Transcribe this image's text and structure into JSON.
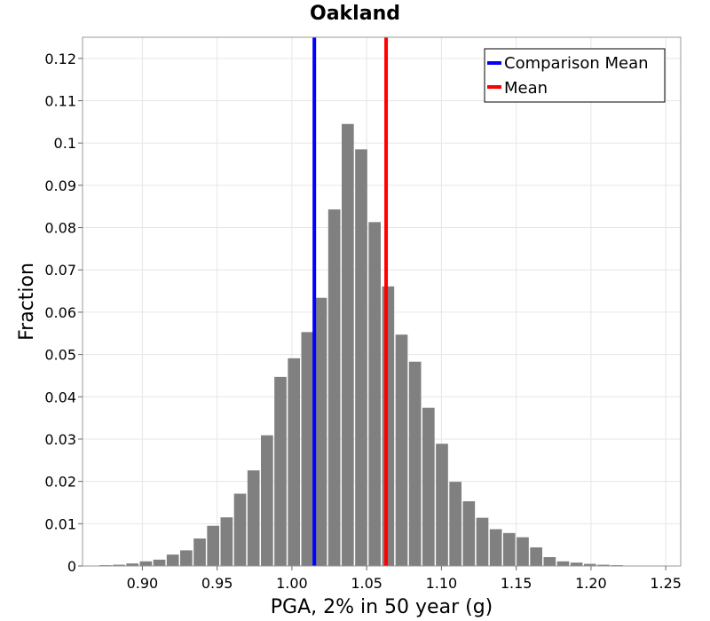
{
  "chart_data": {
    "type": "bar",
    "title": "Oakland",
    "xlabel": "PGA, 2% in 50 year (g)",
    "ylabel": "Fraction",
    "xlim": [
      0.86,
      1.26
    ],
    "ylim": [
      0,
      0.125
    ],
    "x_ticks": [
      0.9,
      0.95,
      1.0,
      1.05,
      1.1,
      1.15,
      1.2,
      1.25
    ],
    "x_tick_labels": [
      "0.90",
      "0.95",
      "1.00",
      "1.05",
      "1.10",
      "1.15",
      "1.20",
      "1.25"
    ],
    "y_ticks": [
      0,
      0.01,
      0.02,
      0.03,
      0.04,
      0.05,
      0.06,
      0.07,
      0.08,
      0.09,
      0.1,
      0.11,
      0.12
    ],
    "y_tick_labels": [
      "0",
      "0.01",
      "0.02",
      "0.03",
      "0.04",
      "0.05",
      "0.06",
      "0.07",
      "0.08",
      "0.09",
      "0.1",
      "0.11",
      "0.12"
    ],
    "grid": true,
    "legend_position": "top-right",
    "bin_width": 0.009,
    "bin_starts": [
      0.871,
      0.88,
      0.889,
      0.898,
      0.907,
      0.916,
      0.925,
      0.934,
      0.943,
      0.952,
      0.961,
      0.97,
      0.979,
      0.988,
      0.997,
      1.006,
      1.015,
      1.024,
      1.033,
      1.042,
      1.051,
      1.06,
      1.069,
      1.078,
      1.087,
      1.096,
      1.105,
      1.114,
      1.123,
      1.132,
      1.141,
      1.15,
      1.159,
      1.168,
      1.177,
      1.186,
      1.195,
      1.204,
      1.213,
      1.222,
      1.231,
      1.24
    ],
    "values": [
      0.0002,
      0.0003,
      0.0006,
      0.0011,
      0.0015,
      0.0027,
      0.0037,
      0.0065,
      0.0095,
      0.0115,
      0.0171,
      0.0226,
      0.0309,
      0.0447,
      0.0491,
      0.0553,
      0.0634,
      0.0843,
      0.1045,
      0.0985,
      0.0813,
      0.0661,
      0.0547,
      0.0483,
      0.0374,
      0.0289,
      0.0199,
      0.0153,
      0.0114,
      0.0087,
      0.0078,
      0.0068,
      0.0044,
      0.0021,
      0.0011,
      0.0008,
      0.0005,
      0.0003,
      0.0002,
      0.0001,
      0.0001,
      0.0001
    ],
    "bar_color": "#808080",
    "vlines": [
      {
        "name": "Comparison Mean",
        "x": 1.015,
        "color": "#0000ff"
      },
      {
        "name": "Mean",
        "x": 1.063,
        "color": "#ff0000"
      }
    ]
  }
}
